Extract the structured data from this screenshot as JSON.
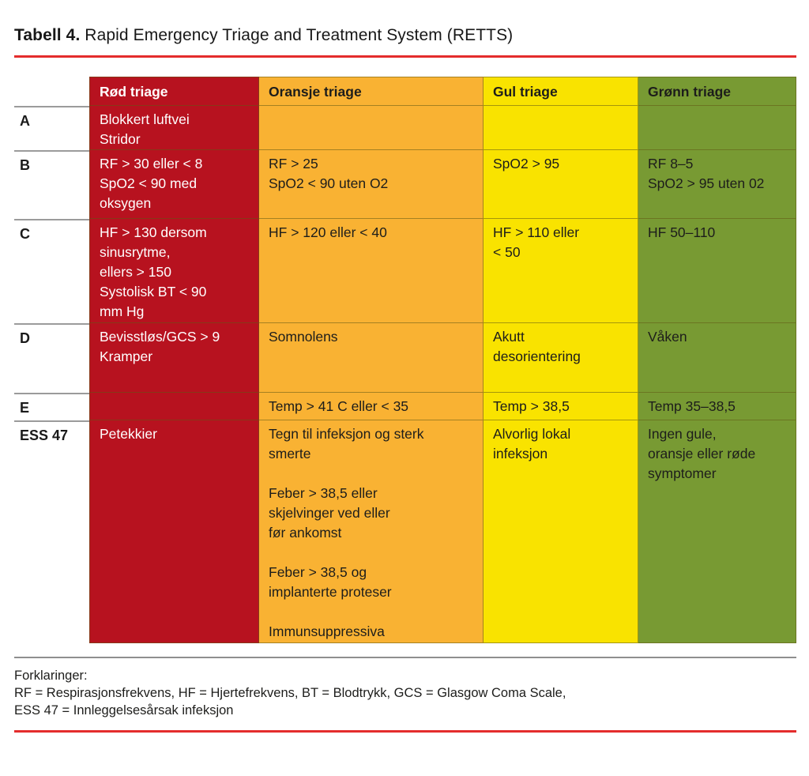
{
  "title": {
    "bold": "Tabell 4.",
    "rest": " Rapid Emergency Triage and Treatment System (RETTS)"
  },
  "colors": {
    "red_column": "#b7121f",
    "orange_column": "#f9b233",
    "yellow_column": "#f9e300",
    "green_column": "#789a33",
    "rule_red": "#e42c2c",
    "rule_gray": "#8f8f8f"
  },
  "table": {
    "columns": [
      {
        "key": "red",
        "label": "Rød triage"
      },
      {
        "key": "orange",
        "label": "Oransje triage"
      },
      {
        "key": "yellow",
        "label": "Gul triage"
      },
      {
        "key": "green",
        "label": "Grønn triage"
      }
    ],
    "rows": [
      {
        "label": "A",
        "cells": [
          [
            "Blokkert luftvei",
            "Stridor"
          ],
          [],
          [],
          []
        ]
      },
      {
        "label": "B",
        "cells": [
          [
            "RF > 30 eller < 8",
            "SpO2 < 90 med",
            "oksygen"
          ],
          [
            "RF > 25",
            "SpO2 < 90 uten O2"
          ],
          [
            "SpO2 > 95"
          ],
          [
            "RF 8–5",
            "SpO2 > 95 uten 02"
          ]
        ]
      },
      {
        "label": "C",
        "cells": [
          [
            "HF > 130 dersom",
            "sinusrytme,",
            "ellers > 150",
            "Systolisk BT < 90",
            "mm Hg"
          ],
          [
            "HF > 120 eller < 40"
          ],
          [
            "HF > 110 eller",
            "< 50"
          ],
          [
            "HF 50–110"
          ]
        ]
      },
      {
        "label": "D",
        "cells": [
          [
            "Bevisstløs/GCS > 9",
            "Kramper"
          ],
          [
            "Somnolens"
          ],
          [
            "Akutt",
            "desorientering"
          ],
          [
            "Våken"
          ]
        ]
      },
      {
        "label": "E",
        "cells": [
          [],
          [
            "Temp > 41 C eller < 35"
          ],
          [
            "Temp > 38,5"
          ],
          [
            "Temp 35–38,5"
          ]
        ]
      },
      {
        "label": "ESS 47",
        "cells": [
          [
            "Petekkier"
          ],
          [
            "Tegn til infeksjon og sterk",
            "smerte",
            "",
            "Feber > 38,5 eller",
            "skjelvinger ved eller",
            "før ankomst",
            "",
            "Feber > 38,5 og",
            "implanterte proteser",
            "",
            "Immunsuppressiva"
          ],
          [
            "Alvorlig lokal",
            "infeksjon"
          ],
          [
            "Ingen gule,",
            "oransje eller røde",
            "symptomer"
          ]
        ]
      }
    ]
  },
  "footnotes": {
    "heading": "Forklaringer:",
    "lines": [
      "RF = Respirasjonsfrekvens, HF = Hjertefrekvens, BT = Blodtrykk, GCS = Glasgow Coma Scale,",
      "ESS 47 = Innleggelsesårsak infeksjon"
    ]
  }
}
